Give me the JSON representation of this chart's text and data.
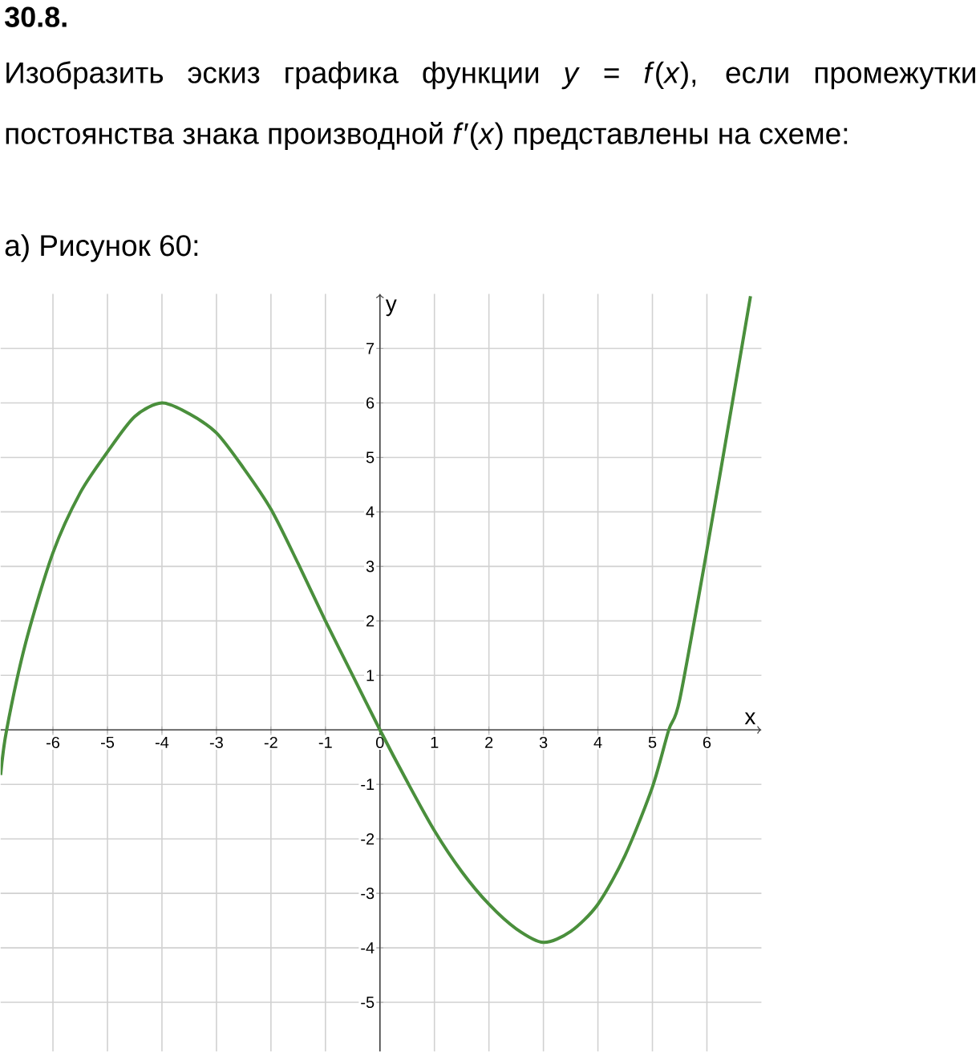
{
  "chart_data": {
    "type": "line",
    "title": "30.8.",
    "subtitle": "Изобразить эскиз графика функции *y* = *f*(*x*), если промежутки постоянства знака производной *f*′(*x*) представлены на схеме:",
    "annotations": [
      "а) Рисунок 60:"
    ],
    "xlabel": "x",
    "ylabel": "y",
    "x": [
      -6.96,
      -6.85,
      -6.5,
      -6,
      -5.5,
      -5,
      -4.5,
      -4,
      -3.5,
      -3,
      -2.5,
      -2,
      -1.5,
      -1,
      -0.5,
      0,
      0.5,
      1,
      1.5,
      2,
      2.5,
      3,
      3.5,
      4,
      4.5,
      5,
      5.3,
      5.5,
      6,
      6.5,
      6.8
    ],
    "series": [
      {
        "color": "#4a8f3c",
        "values": [
          -0.83,
          0,
          1.6,
          3.25,
          4.35,
          5.1,
          5.75,
          6,
          5.8,
          5.45,
          4.8,
          4.05,
          3.05,
          2,
          1,
          0,
          -0.95,
          -1.85,
          -2.6,
          -3.2,
          -3.65,
          -3.9,
          -3.7,
          -3.2,
          -2.3,
          -1.05,
          0,
          0.55,
          3.3,
          6.2,
          7.96
        ]
      }
    ],
    "xlim": [
      -6.96,
      7
    ],
    "ylim": [
      -5.9,
      8
    ],
    "xticks": [
      -6,
      -5,
      -4,
      -3,
      -2,
      -1,
      0,
      1,
      2,
      3,
      4,
      5,
      6
    ],
    "yticks": [
      -5,
      -4,
      -3,
      -2,
      -1,
      1,
      2,
      3,
      4,
      5,
      6,
      7
    ],
    "grid": true,
    "marker": "none",
    "line_style": "solid"
  }
}
